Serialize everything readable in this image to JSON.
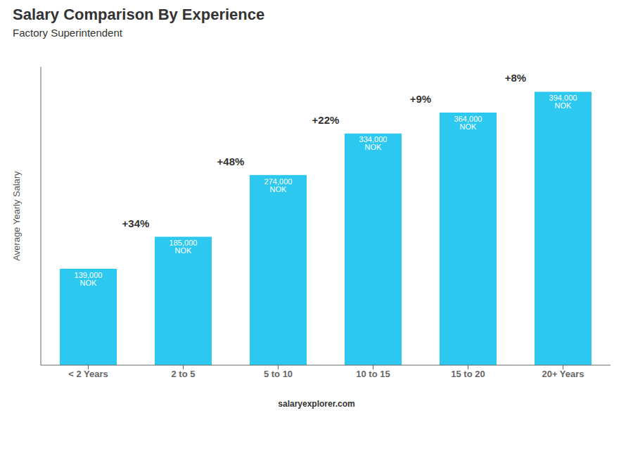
{
  "chart_data": {
    "type": "bar",
    "title": "Salary Comparison By Experience",
    "subtitle": "Factory Superintendent",
    "ylabel": "Average Yearly Salary",
    "footer": "salaryexplorer.com",
    "categories": [
      "< 2 Years",
      "2 to 5",
      "5 to 10",
      "10 to 15",
      "15 to 20",
      "20+ Years"
    ],
    "values": [
      139000,
      185000,
      274000,
      334000,
      364000,
      394000
    ],
    "value_labels": [
      "139,000 NOK",
      "185,000 NOK",
      "274,000 NOK",
      "334,000 NOK",
      "364,000 NOK",
      "394,000 NOK"
    ],
    "data_labels": true,
    "annotations": [
      "+34%",
      "+48%",
      "+22%",
      "+9%",
      "+8%"
    ],
    "color": "#2cc8f0",
    "ylim": [
      0,
      430000
    ],
    "grid": false,
    "tick_labels": "x"
  }
}
